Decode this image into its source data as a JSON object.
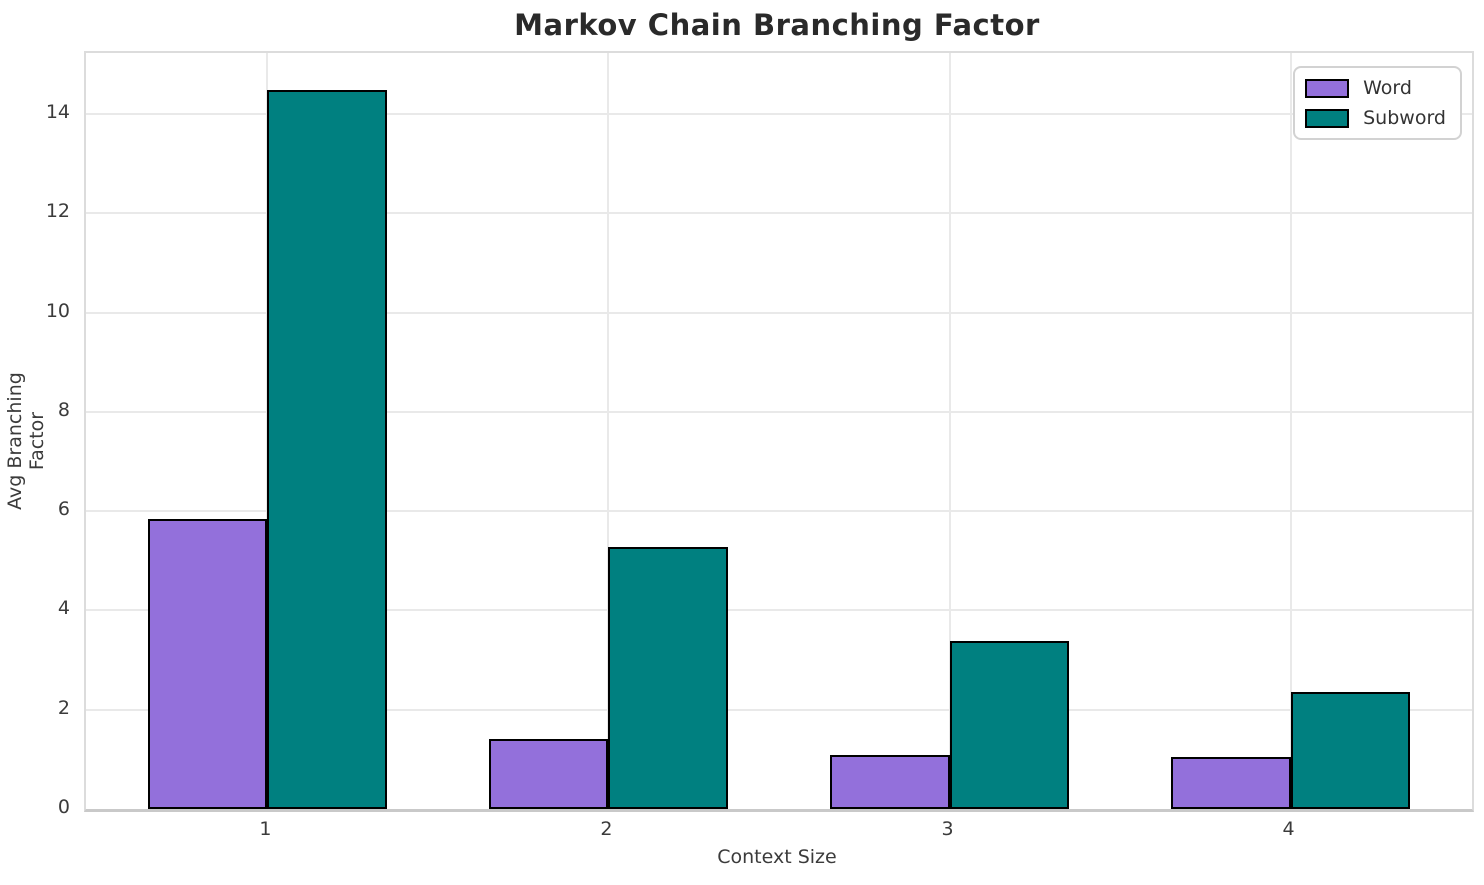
{
  "chart_data": {
    "type": "bar",
    "title": "Markov Chain Branching Factor",
    "xlabel": "Context Size",
    "ylabel": "Avg Branching Factor",
    "categories": [
      "1",
      "2",
      "3",
      "4"
    ],
    "series": [
      {
        "name": "Word",
        "color": "#9370DB",
        "values": [
          5.83,
          1.39,
          1.07,
          1.03
        ]
      },
      {
        "name": "Subword",
        "color": "#008080",
        "values": [
          14.46,
          5.25,
          3.37,
          2.34
        ]
      }
    ],
    "ylim": [
      0,
      15.23
    ],
    "yticks": [
      0,
      2,
      4,
      6,
      8,
      10,
      12,
      14
    ],
    "grid": true,
    "legend": {
      "position": "upper right",
      "entries": [
        "Word",
        "Subword"
      ]
    },
    "bar_edge_color": "#000000",
    "grid_color": "#e9e9e9",
    "background_color": "#ffffff",
    "title_color": "#2a2a2a",
    "tick_color": "#3b3b3b"
  }
}
